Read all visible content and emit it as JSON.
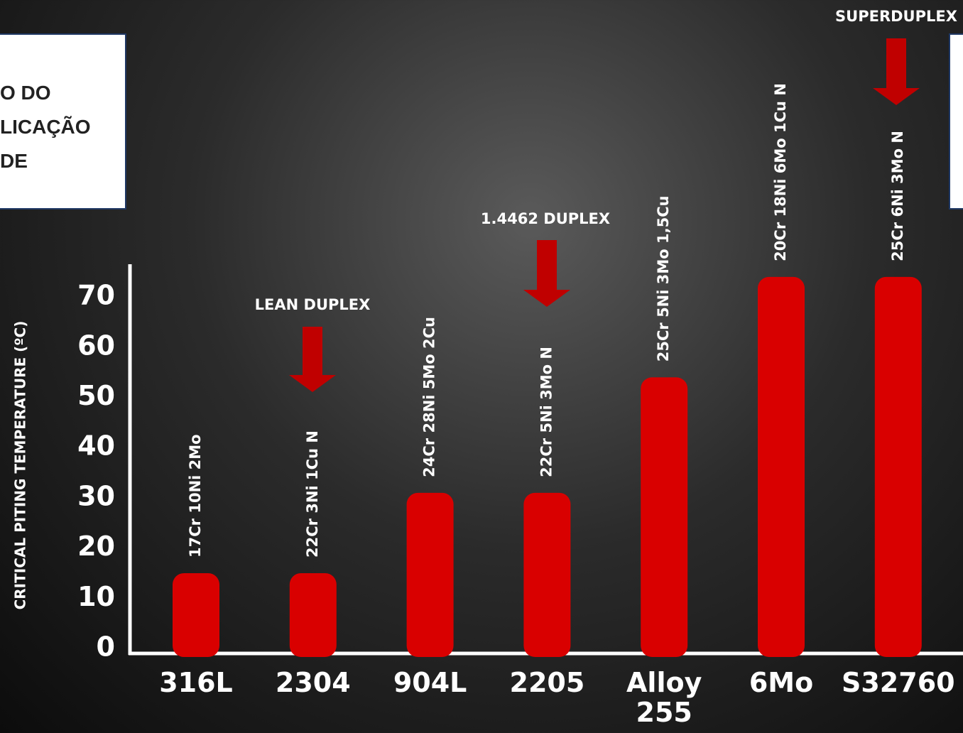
{
  "chart_data": {
    "type": "bar",
    "y_label": "CRITICAL PITING TEMPERATURE (ºC)",
    "categories": [
      "316L",
      "2304",
      "904L",
      "2205",
      "Alloy 255",
      "6Mo",
      "S32760"
    ],
    "values": [
      15,
      15,
      31,
      31,
      54,
      74,
      74
    ],
    "bar_labels": [
      "17Cr 10Ni 2Mo",
      "22Cr 3Ni 1Cu N",
      "24Cr  28Ni 5Mo 2Cu",
      "22Cr 5Ni 3Mo N",
      "25Cr 5Ni 3Mo 1,5Cu",
      "20Cr 18Ni 6Mo 1Cu N",
      "25Cr 6Ni 3Mo N"
    ],
    "annotations": [
      "LEAN DUPLEX",
      "1.4462 DUPLEX",
      "SUPERDUPLEX"
    ],
    "color": "#d90000",
    "ylim": [
      0,
      77
    ],
    "yticks": [
      0,
      10,
      20,
      30,
      40,
      50,
      60,
      70
    ]
  },
  "overlay": {
    "left_box": [
      "O DO",
      "LICAÇÃO",
      "DE"
    ]
  }
}
